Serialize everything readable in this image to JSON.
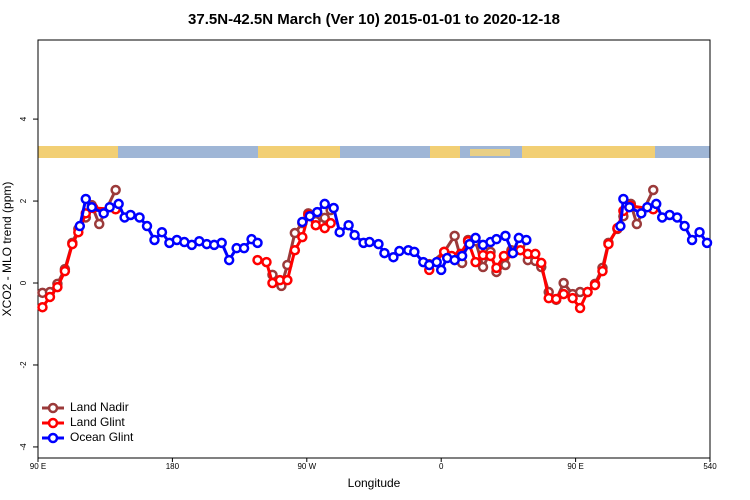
{
  "chart_data": {
    "type": "line",
    "title": "37.5N-42.5N March (Ver 10)   2015-01-01 to 2020-12-18",
    "xlabel": "Longitude",
    "ylabel": "XCO2 - MLO trend (ppm)",
    "xlim": [
      90,
      540
    ],
    "ylim": [
      -4.27,
      5.93
    ],
    "xticks": [
      {
        "value": 90,
        "label": "90 E"
      },
      180,
      {
        "value": 270,
        "label": "90 W"
      },
      {
        "value": 360,
        "label": "0"
      },
      {
        "value": 450,
        "label": "90 E"
      },
      540
    ],
    "yticks": [
      -4,
      -2,
      0,
      2,
      4
    ],
    "legend": "lower left",
    "series": [
      {
        "name": "Land Nadir",
        "color": "#9b3a3a",
        "x": [
          93,
          98,
          103,
          108,
          113,
          117,
          122,
          126,
          131,
          142,
          null,
          247,
          253,
          257,
          262,
          267,
          271,
          276,
          282,
          286,
          null,
          352,
          362,
          369,
          374,
          378,
          383,
          388,
          393,
          397,
          403,
          407,
          413,
          418,
          423,
          427,
          432,
          437,
          442,
          448,
          453,
          458,
          463,
          468,
          472,
          478,
          482,
          487,
          491,
          502
        ],
        "values": [
          -0.24,
          -0.22,
          -0.02,
          0.34,
          0.98,
          1.32,
          1.6,
          1.9,
          1.44,
          2.27,
          null,
          0.2,
          -0.07,
          0.44,
          1.22,
          1.46,
          1.7,
          1.51,
          1.59,
          1.78,
          null,
          0.46,
          0.76,
          1.15,
          0.49,
          1.05,
          1.02,
          0.39,
          0.76,
          0.27,
          0.44,
          0.8,
          0.93,
          0.56,
          0.54,
          0.39,
          -0.22,
          -0.41,
          0,
          -0.27,
          -0.22,
          -0.22,
          -0.02,
          0.37,
          0.98,
          1.32,
          1.63,
          1.93,
          1.44,
          2.27
        ]
      },
      {
        "name": "Land Glint",
        "color": "#ff0000",
        "x": [
          93,
          98,
          103,
          108,
          113,
          117,
          122,
          127,
          142,
          null,
          237,
          243,
          247,
          252,
          257,
          262,
          267,
          271,
          276,
          282,
          286,
          null,
          352,
          362,
          367,
          373,
          378,
          383,
          388,
          393,
          397,
          402,
          407,
          413,
          418,
          423,
          427,
          432,
          437,
          442,
          448,
          453,
          458,
          463,
          468,
          472,
          478,
          482,
          487,
          502
        ],
        "values": [
          -0.59,
          -0.34,
          -0.1,
          0.29,
          0.95,
          1.24,
          1.7,
          1.83,
          1.8,
          null,
          0.56,
          0.51,
          0,
          0.07,
          0.07,
          0.8,
          1.12,
          1.66,
          1.41,
          1.34,
          1.46,
          null,
          0.32,
          0.76,
          0.66,
          0.71,
          1.02,
          0.51,
          0.68,
          0.66,
          0.37,
          0.66,
          0.73,
          0.8,
          0.71,
          0.71,
          0.49,
          -0.37,
          -0.39,
          -0.27,
          -0.37,
          -0.61,
          -0.22,
          -0.05,
          0.29,
          0.95,
          1.34,
          1.76,
          1.88,
          1.8
        ]
      },
      {
        "name": "Ocean Glint",
        "color": "#0000ff",
        "x": [
          118,
          122,
          126,
          134,
          138,
          144,
          148,
          152,
          158,
          163,
          168,
          173,
          178,
          183,
          188,
          193,
          198,
          203,
          208,
          213,
          218,
          223,
          228,
          233,
          237,
          null,
          267,
          272,
          277,
          282,
          288,
          292,
          298,
          302,
          308,
          312,
          318,
          322,
          328,
          332,
          338,
          342,
          348,
          352,
          357,
          360,
          364,
          369,
          374,
          379,
          383,
          388,
          393,
          397,
          403,
          408,
          412,
          417,
          null,
          480,
          482,
          486,
          494,
          498,
          504,
          508,
          513,
          518,
          523,
          528,
          533,
          538
        ],
        "values": [
          1.39,
          2.05,
          1.85,
          1.7,
          1.85,
          1.93,
          1.6,
          1.66,
          1.6,
          1.39,
          1.05,
          1.24,
          0.98,
          1.05,
          1.0,
          0.93,
          1.02,
          0.95,
          0.93,
          0.98,
          0.56,
          0.85,
          0.85,
          1.07,
          0.98,
          null,
          1.49,
          1.63,
          1.73,
          1.93,
          1.83,
          1.24,
          1.41,
          1.17,
          0.98,
          1.0,
          0.95,
          0.73,
          0.63,
          0.78,
          0.8,
          0.76,
          0.51,
          0.44,
          0.51,
          0.32,
          0.61,
          0.56,
          0.66,
          0.95,
          1.1,
          0.93,
          1.0,
          1.07,
          1.15,
          0.73,
          1.1,
          1.05,
          null,
          1.39,
          2.05,
          1.85,
          1.7,
          1.85,
          1.93,
          1.6,
          1.66,
          1.6,
          1.39,
          1.05,
          1.24,
          0.98
        ]
      }
    ]
  }
}
